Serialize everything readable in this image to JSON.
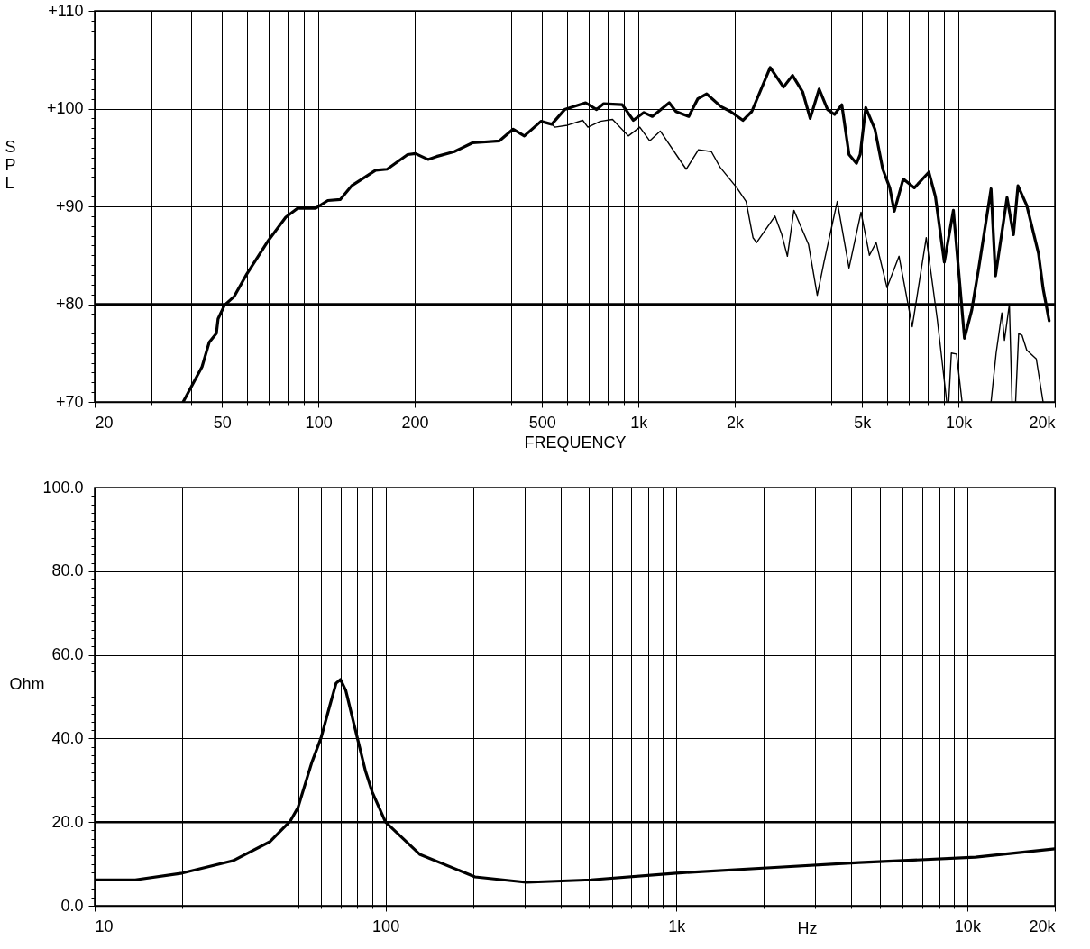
{
  "chart_data": [
    {
      "type": "line",
      "xlabel": "FREQUENCY",
      "ylabel": "SPL",
      "log": "x",
      "grid": true,
      "xlim": [
        20,
        20000
      ],
      "ylim": [
        70,
        110
      ],
      "xticks": [
        20,
        {
          "value": 30,
          "label": null
        },
        {
          "value": 40,
          "label": null
        },
        50,
        {
          "value": 60,
          "label": null
        },
        {
          "value": 70,
          "label": null
        },
        {
          "value": 80,
          "label": null
        },
        {
          "value": 90,
          "label": null
        },
        100,
        200,
        {
          "value": 300,
          "label": null
        },
        {
          "value": 400,
          "label": null
        },
        500,
        {
          "value": 600,
          "label": null
        },
        {
          "value": 700,
          "label": null
        },
        {
          "value": 800,
          "label": null
        },
        {
          "value": 900,
          "label": null
        },
        {
          "value": 1000,
          "label": "1k"
        },
        {
          "value": 2000,
          "label": "2k"
        },
        {
          "value": 3000,
          "label": null
        },
        {
          "value": 4000,
          "label": null
        },
        {
          "value": 5000,
          "label": "5k"
        },
        {
          "value": 6000,
          "label": null
        },
        {
          "value": 7000,
          "label": null
        },
        {
          "value": 8000,
          "label": null
        },
        {
          "value": 9000,
          "label": null
        },
        {
          "value": 10000,
          "label": "10k"
        },
        {
          "value": 20000,
          "label": "20k"
        }
      ],
      "yticks": [
        {
          "value": 70,
          "label": "+70"
        },
        {
          "value": 71,
          "label": null
        },
        {
          "value": 72,
          "label": null
        },
        {
          "value": 73,
          "label": null
        },
        {
          "value": 74,
          "label": null
        },
        {
          "value": 75,
          "label": null
        },
        {
          "value": 76,
          "label": null
        },
        {
          "value": 77,
          "label": null
        },
        {
          "value": 78,
          "label": null
        },
        {
          "value": 79,
          "label": null
        },
        {
          "value": 80,
          "label": "+80"
        },
        {
          "value": 81,
          "label": null
        },
        {
          "value": 82,
          "label": null
        },
        {
          "value": 83,
          "label": null
        },
        {
          "value": 84,
          "label": null
        },
        {
          "value": 85,
          "label": null
        },
        {
          "value": 86,
          "label": null
        },
        {
          "value": 87,
          "label": null
        },
        {
          "value": 88,
          "label": null
        },
        {
          "value": 89,
          "label": null
        },
        {
          "value": 90,
          "label": "+90"
        },
        {
          "value": 91,
          "label": null
        },
        {
          "value": 92,
          "label": null
        },
        {
          "value": 93,
          "label": null
        },
        {
          "value": 94,
          "label": null
        },
        {
          "value": 95,
          "label": null
        },
        {
          "value": 96,
          "label": null
        },
        {
          "value": 97,
          "label": null
        },
        {
          "value": 98,
          "label": null
        },
        {
          "value": 99,
          "label": null
        },
        {
          "value": 100,
          "label": "+100"
        },
        {
          "value": 101,
          "label": null
        },
        {
          "value": 102,
          "label": null
        },
        {
          "value": 103,
          "label": null
        },
        {
          "value": 104,
          "label": null
        },
        {
          "value": 105,
          "label": null
        },
        {
          "value": 106,
          "label": null
        },
        {
          "value": 107,
          "label": null
        },
        {
          "value": 108,
          "label": null
        },
        {
          "value": 109,
          "label": null
        },
        {
          "value": 110,
          "label": "+110"
        }
      ],
      "ref_lines": [
        {
          "axis": "y",
          "value": 80,
          "color": "#000000"
        }
      ],
      "series": [
        {
          "color": "#000000",
          "x": [
            37.8,
            40,
            43.3,
            45.6,
            48,
            48.6,
            50.9,
            54.6,
            59.8,
            69.4,
            79.1,
            86,
            98,
            107,
            117,
            127,
            151,
            164,
            190,
            201,
            220,
            234,
            266,
            303,
            368,
            406,
            440,
            496,
            536,
            588,
            684,
            740,
            779,
            890,
            964,
            1040,
            1105,
            1248,
            1310,
            1436,
            1532,
            1634,
            1812,
            1940,
            2120,
            2260,
            2580,
            2840,
            3030,
            3260,
            3440,
            3670,
            3900,
            4100,
            4320,
            4550,
            4800,
            4930,
            5130,
            5480,
            5800,
            6100,
            6300,
            6720,
            7280,
            8080,
            8470,
            9030,
            9640,
            10440,
            11000,
            11570,
            12640,
            13050,
            14180,
            14850,
            15340,
            16340,
            17780,
            18380,
            19200
          ],
          "values": [
            70,
            71.5,
            73.6,
            76.1,
            77,
            78.5,
            79.9,
            80.8,
            83.1,
            86.4,
            88.9,
            89.8,
            89.8,
            90.6,
            90.7,
            92.1,
            93.7,
            93.8,
            95.3,
            95.4,
            94.8,
            95.1,
            95.6,
            96.5,
            96.7,
            97.9,
            97.2,
            98.7,
            98.4,
            99.9,
            100.6,
            99.9,
            100.5,
            100.4,
            98.8,
            99.6,
            99.2,
            100.6,
            99.7,
            99.2,
            101,
            101.5,
            100.2,
            99.7,
            98.8,
            99.7,
            104.2,
            102.2,
            103.4,
            101.7,
            99,
            102,
            99.9,
            99.4,
            100.4,
            95.3,
            94.4,
            95.3,
            100.1,
            97.9,
            93.8,
            91.9,
            89.5,
            92.8,
            91.9,
            93.5,
            91,
            84.3,
            89.6,
            76.5,
            79.4,
            83.7,
            91.8,
            82.9,
            90.9,
            87.1,
            92.1,
            90.1,
            85.2,
            81.6,
            78.3
          ]
        },
        {
          "color": "#000000",
          "x": [
            37.8,
            40,
            43.3,
            45.6,
            48,
            48.6,
            50.9,
            54.6,
            59.8,
            69.4,
            79.1,
            86,
            98,
            107,
            117,
            127,
            151,
            164,
            190,
            201,
            220,
            234,
            266,
            303,
            368,
            406,
            440,
            496,
            536,
            548,
            600,
            670,
            695,
            760,
            830,
            930,
            1010,
            1085,
            1170,
            1350,
            1410,
            1540,
            1690,
            1800,
            2030,
            2170,
            2280,
            2340,
            2670,
            2800,
            2920,
            3060,
            3400,
            3620,
            3800,
            4180,
            4550,
            4960,
            5270,
            5530,
            5980,
            6520,
            7170,
            7930,
            8580,
            9190,
            9250,
            9320,
            9500,
            9860,
            10260,
            10400,
            12640,
            13110,
            13660,
            13920,
            14420,
            14700,
            14900,
            15080,
            15420,
            15800,
            16340,
            17500,
            18380
          ],
          "values": [
            70,
            71.5,
            73.6,
            76.1,
            77,
            78.5,
            79.9,
            80.8,
            83.1,
            86.4,
            88.9,
            89.8,
            89.8,
            90.6,
            90.7,
            92.1,
            93.7,
            93.8,
            95.3,
            95.4,
            94.8,
            95.1,
            95.6,
            96.5,
            96.7,
            97.9,
            97.2,
            98.7,
            98.4,
            98.1,
            98.3,
            98.8,
            98.1,
            98.7,
            98.9,
            97.2,
            98.1,
            96.7,
            97.7,
            94.7,
            93.8,
            95.8,
            95.6,
            94,
            91.9,
            90.5,
            86.8,
            86.3,
            89,
            87.2,
            84.9,
            89.6,
            86.1,
            80.9,
            84.3,
            90.5,
            83.7,
            89.4,
            85,
            86.3,
            81.7,
            84.9,
            77.7,
            86.8,
            78.5,
            70,
            null,
            70,
            75,
            74.9,
            70,
            null,
            70,
            75,
            79.1,
            76.3,
            80,
            70,
            null,
            70,
            77,
            76.8,
            75.3,
            74.4,
            70
          ]
        }
      ]
    },
    {
      "type": "line",
      "xlabel": "Hz",
      "ylabel": "Ohm",
      "log": "x",
      "grid": true,
      "xlim": [
        10,
        20000
      ],
      "ylim": [
        0,
        100
      ],
      "xticks": [
        10,
        {
          "value": 20,
          "label": null
        },
        {
          "value": 30,
          "label": null
        },
        {
          "value": 40,
          "label": null
        },
        {
          "value": 50,
          "label": null
        },
        {
          "value": 60,
          "label": null
        },
        {
          "value": 70,
          "label": null
        },
        {
          "value": 80,
          "label": null
        },
        {
          "value": 90,
          "label": null
        },
        100,
        {
          "value": 200,
          "label": null
        },
        {
          "value": 300,
          "label": null
        },
        {
          "value": 400,
          "label": null
        },
        {
          "value": 500,
          "label": null
        },
        {
          "value": 600,
          "label": null
        },
        {
          "value": 700,
          "label": null
        },
        {
          "value": 800,
          "label": null
        },
        {
          "value": 900,
          "label": null
        },
        {
          "value": 1000,
          "label": "1k"
        },
        {
          "value": 2000,
          "label": null
        },
        {
          "value": 3000,
          "label": null
        },
        {
          "value": 4000,
          "label": null
        },
        {
          "value": 5000,
          "label": null
        },
        {
          "value": 6000,
          "label": null
        },
        {
          "value": 7000,
          "label": null
        },
        {
          "value": 8000,
          "label": null
        },
        {
          "value": 9000,
          "label": null
        },
        {
          "value": 10000,
          "label": "10k"
        },
        {
          "value": 20000,
          "label": "20k"
        }
      ],
      "yticks": [
        {
          "value": 0,
          "label": "0.0"
        },
        {
          "value": 2,
          "label": null
        },
        {
          "value": 4,
          "label": null
        },
        {
          "value": 6,
          "label": null
        },
        {
          "value": 8,
          "label": null
        },
        {
          "value": 10,
          "label": null
        },
        {
          "value": 12,
          "label": null
        },
        {
          "value": 14,
          "label": null
        },
        {
          "value": 16,
          "label": null
        },
        {
          "value": 18,
          "label": null
        },
        {
          "value": 20,
          "label": "20.0"
        },
        {
          "value": 22,
          "label": null
        },
        {
          "value": 24,
          "label": null
        },
        {
          "value": 26,
          "label": null
        },
        {
          "value": 28,
          "label": null
        },
        {
          "value": 30,
          "label": null
        },
        {
          "value": 32,
          "label": null
        },
        {
          "value": 34,
          "label": null
        },
        {
          "value": 36,
          "label": null
        },
        {
          "value": 38,
          "label": null
        },
        {
          "value": 40,
          "label": "40.0"
        },
        {
          "value": 42,
          "label": null
        },
        {
          "value": 44,
          "label": null
        },
        {
          "value": 46,
          "label": null
        },
        {
          "value": 48,
          "label": null
        },
        {
          "value": 50,
          "label": null
        },
        {
          "value": 52,
          "label": null
        },
        {
          "value": 54,
          "label": null
        },
        {
          "value": 56,
          "label": null
        },
        {
          "value": 58,
          "label": null
        },
        {
          "value": 60,
          "label": "60.0"
        },
        {
          "value": 62,
          "label": null
        },
        {
          "value": 64,
          "label": null
        },
        {
          "value": 66,
          "label": null
        },
        {
          "value": 68,
          "label": null
        },
        {
          "value": 70,
          "label": null
        },
        {
          "value": 72,
          "label": null
        },
        {
          "value": 74,
          "label": null
        },
        {
          "value": 76,
          "label": null
        },
        {
          "value": 78,
          "label": null
        },
        {
          "value": 80,
          "label": "80.0"
        },
        {
          "value": 82,
          "label": null
        },
        {
          "value": 84,
          "label": null
        },
        {
          "value": 86,
          "label": null
        },
        {
          "value": 88,
          "label": null
        },
        {
          "value": 90,
          "label": null
        },
        {
          "value": 92,
          "label": null
        },
        {
          "value": 94,
          "label": null
        },
        {
          "value": 96,
          "label": null
        },
        {
          "value": 98,
          "label": null
        },
        {
          "value": 100,
          "label": "100.0"
        }
      ],
      "ref_lines": [
        {
          "axis": "y",
          "value": 20,
          "color": "#000000"
        }
      ],
      "series": [
        {
          "color": "#000000",
          "x": [
            10,
            13.8,
            20,
            30,
            40,
            47.1,
            50,
            55.8,
            60,
            64.3,
            67.6,
            70,
            73,
            80,
            85.4,
            90,
            100,
            131,
            203,
            305,
            509,
            1000,
            2110,
            4240,
            10670,
            20000
          ],
          "values": [
            6.2,
            6.2,
            7.8,
            10.8,
            15.3,
            20.3,
            23.5,
            34.3,
            40.1,
            47.8,
            53.2,
            54.1,
            51.5,
            40.1,
            32.1,
            27.2,
            20,
            12.3,
            6.9,
            5.6,
            6.2,
            7.8,
            9.1,
            10.3,
            11.6,
            13.6
          ]
        }
      ]
    }
  ]
}
